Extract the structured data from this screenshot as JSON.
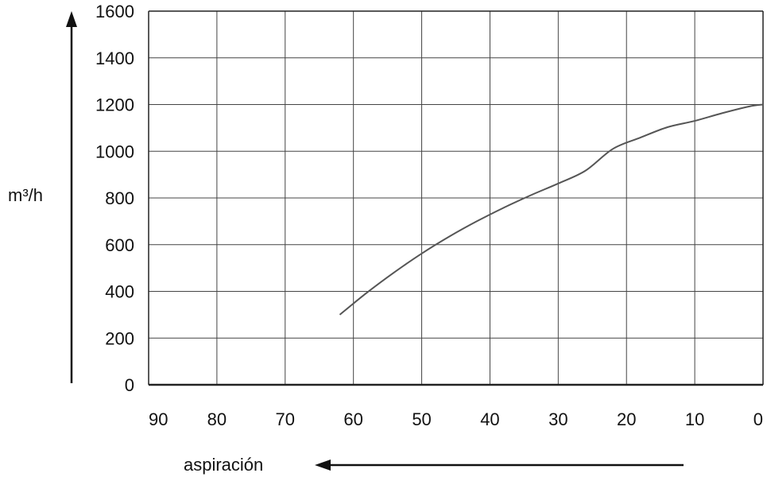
{
  "chart_data": {
    "type": "line",
    "title": "",
    "xlabel": "aspiración",
    "ylabel": "m³/h",
    "xlim": [
      90,
      0
    ],
    "ylim": [
      0,
      1600
    ],
    "x_ticks": [
      "90",
      "80",
      "70",
      "60",
      "50",
      "40",
      "30",
      "20",
      "10",
      "0"
    ],
    "y_ticks": [
      "1600",
      "1400",
      "1200",
      "1000",
      "800",
      "600",
      "400",
      "200",
      "0"
    ],
    "grid": true,
    "series": [
      {
        "x": [
          62,
          58,
          54,
          50,
          46,
          42,
          38,
          34,
          30,
          26,
          22,
          18,
          14,
          10,
          6,
          2,
          0
        ],
        "y": [
          300,
          395,
          482,
          562,
          634,
          699,
          758,
          812,
          862,
          917,
          1010,
          1058,
          1103,
          1130,
          1163,
          1192,
          1200
        ],
        "color": "#555555"
      }
    ]
  }
}
